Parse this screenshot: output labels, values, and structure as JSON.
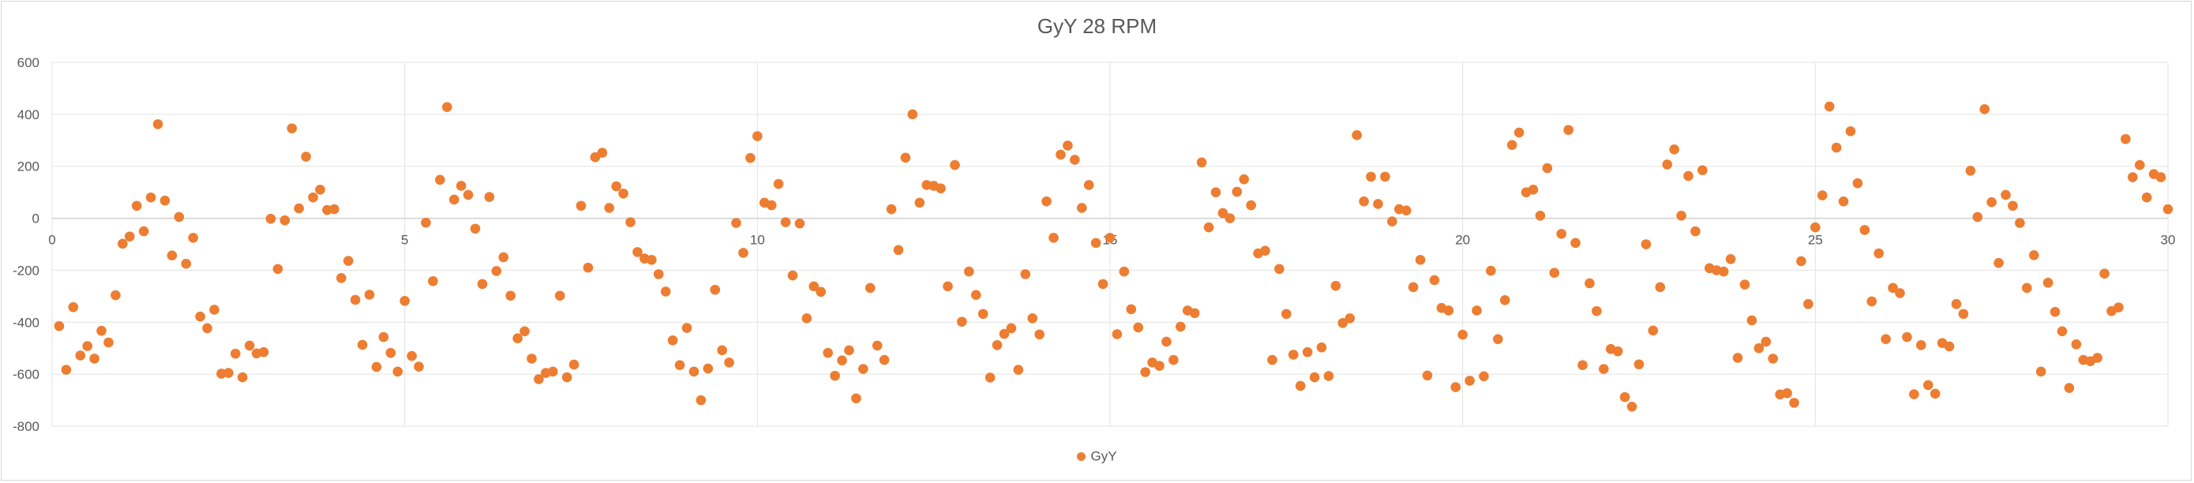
{
  "chart_data": {
    "type": "scatter",
    "title": "GyY 28 RPM",
    "xlabel": "",
    "ylabel": "",
    "xlim": [
      0,
      30
    ],
    "ylim": [
      -800,
      600
    ],
    "xticks": [
      0,
      5,
      10,
      15,
      20,
      25,
      30
    ],
    "yticks": [
      -800,
      -600,
      -400,
      -200,
      0,
      200,
      400,
      600
    ],
    "grid": true,
    "legend_position": "bottom",
    "series": [
      {
        "name": "GyY",
        "color": "#ED7D31",
        "points": [
          [
            0.1,
            -415
          ],
          [
            0.2,
            -583
          ],
          [
            0.3,
            -342
          ],
          [
            0.4,
            -528
          ],
          [
            0.5,
            -492
          ],
          [
            0.6,
            -540
          ],
          [
            0.7,
            -433
          ],
          [
            0.8,
            -478
          ],
          [
            0.9,
            -296
          ],
          [
            1.0,
            -98
          ],
          [
            1.1,
            -70
          ],
          [
            1.2,
            48
          ],
          [
            1.3,
            -50
          ],
          [
            1.4,
            80
          ],
          [
            1.5,
            362
          ],
          [
            1.6,
            68
          ],
          [
            1.7,
            -143
          ],
          [
            1.8,
            5
          ],
          [
            1.9,
            -175
          ],
          [
            2.0,
            -75
          ],
          [
            2.1,
            -378
          ],
          [
            2.2,
            -423
          ],
          [
            2.3,
            -352
          ],
          [
            2.4,
            -598
          ],
          [
            2.5,
            -595
          ],
          [
            2.6,
            -521
          ],
          [
            2.7,
            -612
          ],
          [
            2.8,
            -490
          ],
          [
            2.9,
            -520
          ],
          [
            3.0,
            -515
          ],
          [
            3.1,
            -2
          ],
          [
            3.2,
            -195
          ],
          [
            3.3,
            -8
          ],
          [
            3.4,
            346
          ],
          [
            3.5,
            38
          ],
          [
            3.6,
            237
          ],
          [
            3.7,
            80
          ],
          [
            3.8,
            110
          ],
          [
            3.9,
            32
          ],
          [
            4.0,
            35
          ],
          [
            4.1,
            -230
          ],
          [
            4.2,
            -164
          ],
          [
            4.3,
            -314
          ],
          [
            4.4,
            -487
          ],
          [
            4.5,
            -294
          ],
          [
            4.6,
            -572
          ],
          [
            4.7,
            -457
          ],
          [
            4.8,
            -518
          ],
          [
            4.9,
            -590
          ],
          [
            5.0,
            -318
          ],
          [
            5.1,
            -530
          ],
          [
            5.2,
            -571
          ],
          [
            5.3,
            -17
          ],
          [
            5.4,
            -242
          ],
          [
            5.5,
            148
          ],
          [
            5.6,
            428
          ],
          [
            5.7,
            72
          ],
          [
            5.8,
            125
          ],
          [
            5.9,
            90
          ],
          [
            6.0,
            -40
          ],
          [
            6.1,
            -253
          ],
          [
            6.2,
            82
          ],
          [
            6.3,
            -203
          ],
          [
            6.4,
            -150
          ],
          [
            6.5,
            -298
          ],
          [
            6.6,
            -462
          ],
          [
            6.7,
            -435
          ],
          [
            6.8,
            -540
          ],
          [
            6.9,
            -619
          ],
          [
            7.0,
            -595
          ],
          [
            7.1,
            -590
          ],
          [
            7.2,
            -298
          ],
          [
            7.3,
            -612
          ],
          [
            7.4,
            -563
          ],
          [
            7.5,
            48
          ],
          [
            7.6,
            -190
          ],
          [
            7.7,
            235
          ],
          [
            7.8,
            252
          ],
          [
            7.9,
            40
          ],
          [
            8.0,
            123
          ],
          [
            8.1,
            95
          ],
          [
            8.2,
            -15
          ],
          [
            8.3,
            -130
          ],
          [
            8.4,
            -155
          ],
          [
            8.5,
            -160
          ],
          [
            8.6,
            -215
          ],
          [
            8.7,
            -282
          ],
          [
            8.8,
            -470
          ],
          [
            8.9,
            -565
          ],
          [
            9.0,
            -422
          ],
          [
            9.1,
            -590
          ],
          [
            9.2,
            -700
          ],
          [
            9.3,
            -578
          ],
          [
            9.4,
            -275
          ],
          [
            9.5,
            -508
          ],
          [
            9.6,
            -555
          ],
          [
            9.7,
            -18
          ],
          [
            9.8,
            -133
          ],
          [
            9.9,
            232
          ],
          [
            10.0,
            316
          ],
          [
            10.1,
            60
          ],
          [
            10.2,
            50
          ],
          [
            10.3,
            132
          ],
          [
            10.4,
            -15
          ],
          [
            10.5,
            -220
          ],
          [
            10.6,
            -20
          ],
          [
            10.7,
            -385
          ],
          [
            10.8,
            -262
          ],
          [
            10.9,
            -283
          ],
          [
            11.0,
            -518
          ],
          [
            11.1,
            -606
          ],
          [
            11.2,
            -547
          ],
          [
            11.3,
            -508
          ],
          [
            11.4,
            -693
          ],
          [
            11.5,
            -580
          ],
          [
            11.6,
            -268
          ],
          [
            11.7,
            -490
          ],
          [
            11.8,
            -545
          ],
          [
            11.9,
            35
          ],
          [
            12.0,
            -122
          ],
          [
            12.1,
            233
          ],
          [
            12.2,
            400
          ],
          [
            12.3,
            60
          ],
          [
            12.4,
            128
          ],
          [
            12.5,
            125
          ],
          [
            12.6,
            115
          ],
          [
            12.7,
            -262
          ],
          [
            12.8,
            205
          ],
          [
            12.9,
            -398
          ],
          [
            13.0,
            -205
          ],
          [
            13.1,
            -295
          ],
          [
            13.2,
            -368
          ],
          [
            13.3,
            -613
          ],
          [
            13.4,
            -488
          ],
          [
            13.5,
            -445
          ],
          [
            13.6,
            -423
          ],
          [
            13.7,
            -583
          ],
          [
            13.8,
            -215
          ],
          [
            13.9,
            -385
          ],
          [
            14.0,
            -447
          ],
          [
            14.1,
            65
          ],
          [
            14.2,
            -75
          ],
          [
            14.3,
            245
          ],
          [
            14.4,
            280
          ],
          [
            14.5,
            225
          ],
          [
            14.6,
            40
          ],
          [
            14.7,
            128
          ],
          [
            14.8,
            -95
          ],
          [
            14.9,
            -253
          ],
          [
            15.0,
            -75
          ],
          [
            15.1,
            -446
          ],
          [
            15.2,
            -205
          ],
          [
            15.3,
            -350
          ],
          [
            15.4,
            -420
          ],
          [
            15.5,
            -592
          ],
          [
            15.6,
            -555
          ],
          [
            15.7,
            -568
          ],
          [
            15.8,
            -475
          ],
          [
            15.9,
            -545
          ],
          [
            16.0,
            -417
          ],
          [
            16.1,
            -355
          ],
          [
            16.2,
            -365
          ],
          [
            16.3,
            215
          ],
          [
            16.4,
            -35
          ],
          [
            16.5,
            100
          ],
          [
            16.6,
            20
          ],
          [
            16.7,
            0
          ],
          [
            16.8,
            102
          ],
          [
            16.9,
            150
          ],
          [
            17.0,
            50
          ],
          [
            17.1,
            -135
          ],
          [
            17.2,
            -125
          ],
          [
            17.3,
            -545
          ],
          [
            17.4,
            -195
          ],
          [
            17.5,
            -368
          ],
          [
            17.6,
            -525
          ],
          [
            17.7,
            -645
          ],
          [
            17.8,
            -515
          ],
          [
            17.9,
            -612
          ],
          [
            18.0,
            -497
          ],
          [
            18.1,
            -607
          ],
          [
            18.2,
            -260
          ],
          [
            18.3,
            -403
          ],
          [
            18.4,
            -385
          ],
          [
            18.5,
            320
          ],
          [
            18.6,
            65
          ],
          [
            18.7,
            160
          ],
          [
            18.8,
            55
          ],
          [
            18.9,
            160
          ],
          [
            19.0,
            -12
          ],
          [
            19.1,
            35
          ],
          [
            19.2,
            30
          ],
          [
            19.3,
            -265
          ],
          [
            19.4,
            -160
          ],
          [
            19.5,
            -605
          ],
          [
            19.6,
            -238
          ],
          [
            19.7,
            -345
          ],
          [
            19.8,
            -355
          ],
          [
            19.9,
            -650
          ],
          [
            20.0,
            -448
          ],
          [
            20.1,
            -625
          ],
          [
            20.2,
            -355
          ],
          [
            20.3,
            -608
          ],
          [
            20.4,
            -202
          ],
          [
            20.5,
            -465
          ],
          [
            20.6,
            -315
          ],
          [
            20.7,
            282
          ],
          [
            20.8,
            330
          ],
          [
            20.9,
            100
          ],
          [
            21.0,
            110
          ],
          [
            21.1,
            10
          ],
          [
            21.2,
            193
          ],
          [
            21.3,
            -210
          ],
          [
            21.4,
            -60
          ],
          [
            21.5,
            340
          ],
          [
            21.6,
            -95
          ],
          [
            21.7,
            -565
          ],
          [
            21.8,
            -250
          ],
          [
            21.9,
            -357
          ],
          [
            22.0,
            -580
          ],
          [
            22.1,
            -503
          ],
          [
            22.2,
            -512
          ],
          [
            22.3,
            -688
          ],
          [
            22.4,
            -725
          ],
          [
            22.5,
            -562
          ],
          [
            22.6,
            -100
          ],
          [
            22.7,
            -432
          ],
          [
            22.8,
            -265
          ],
          [
            22.9,
            207
          ],
          [
            23.0,
            265
          ],
          [
            23.1,
            10
          ],
          [
            23.2,
            163
          ],
          [
            23.3,
            -50
          ],
          [
            23.4,
            185
          ],
          [
            23.5,
            -192
          ],
          [
            23.6,
            -200
          ],
          [
            23.7,
            -205
          ],
          [
            23.8,
            -157
          ],
          [
            23.9,
            -537
          ],
          [
            24.0,
            -255
          ],
          [
            24.1,
            -393
          ],
          [
            24.2,
            -500
          ],
          [
            24.3,
            -475
          ],
          [
            24.4,
            -540
          ],
          [
            24.5,
            -678
          ],
          [
            24.6,
            -673
          ],
          [
            24.7,
            -710
          ],
          [
            24.8,
            -165
          ],
          [
            24.9,
            -330
          ],
          [
            25.0,
            -35
          ],
          [
            25.1,
            88
          ],
          [
            25.2,
            430
          ],
          [
            25.3,
            272
          ],
          [
            25.4,
            65
          ],
          [
            25.5,
            335
          ],
          [
            25.6,
            135
          ],
          [
            25.7,
            -45
          ],
          [
            25.8,
            -320
          ],
          [
            25.9,
            -135
          ],
          [
            26.0,
            -465
          ],
          [
            26.1,
            -268
          ],
          [
            26.2,
            -288
          ],
          [
            26.3,
            -457
          ],
          [
            26.4,
            -677
          ],
          [
            26.5,
            -488
          ],
          [
            26.6,
            -642
          ],
          [
            26.7,
            -675
          ],
          [
            26.8,
            -480
          ],
          [
            26.9,
            -493
          ],
          [
            27.0,
            -330
          ],
          [
            27.1,
            -368
          ],
          [
            27.2,
            183
          ],
          [
            27.3,
            5
          ],
          [
            27.4,
            420
          ],
          [
            27.5,
            62
          ],
          [
            27.6,
            -172
          ],
          [
            27.7,
            90
          ],
          [
            27.8,
            48
          ],
          [
            27.9,
            -18
          ],
          [
            28.0,
            -268
          ],
          [
            28.1,
            -142
          ],
          [
            28.2,
            -590
          ],
          [
            28.3,
            -248
          ],
          [
            28.4,
            -360
          ],
          [
            28.5,
            -435
          ],
          [
            28.6,
            -653
          ],
          [
            28.7,
            -485
          ],
          [
            28.8,
            -545
          ],
          [
            28.9,
            -550
          ],
          [
            29.0,
            -537
          ],
          [
            29.1,
            -213
          ],
          [
            29.2,
            -357
          ],
          [
            29.3,
            -343
          ],
          [
            29.4,
            305
          ],
          [
            29.5,
            158
          ],
          [
            29.6,
            205
          ],
          [
            29.7,
            80
          ],
          [
            29.8,
            170
          ],
          [
            29.9,
            158
          ],
          [
            30.0,
            35
          ]
        ]
      }
    ]
  }
}
